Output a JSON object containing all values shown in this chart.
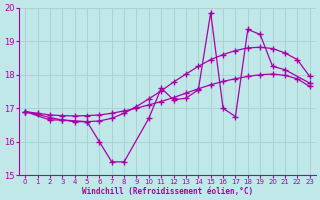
{
  "xlabel": "Windchill (Refroidissement éolien,°C)",
  "xlim": [
    -0.5,
    23.5
  ],
  "ylim": [
    15,
    20
  ],
  "yticks": [
    15,
    16,
    17,
    18,
    19,
    20
  ],
  "xticks": [
    0,
    1,
    2,
    3,
    4,
    5,
    6,
    7,
    8,
    9,
    10,
    11,
    12,
    13,
    14,
    15,
    16,
    17,
    18,
    19,
    20,
    21,
    22,
    23
  ],
  "bg_color": "#c0e8e8",
  "grid_color": "#a8d0d0",
  "line_color": "#aa00aa",
  "lines": [
    {
      "x": [
        0,
        1,
        2,
        3,
        4,
        5,
        6,
        7,
        8,
        9,
        10,
        11,
        12,
        13,
        14,
        15,
        16,
        17,
        18,
        19,
        20,
        21,
        22,
        23
      ],
      "y": [
        16.9,
        16.85,
        16.8,
        16.78,
        16.77,
        16.78,
        16.8,
        16.85,
        16.92,
        17.0,
        17.1,
        17.2,
        17.32,
        17.45,
        17.58,
        17.7,
        17.8,
        17.88,
        17.95,
        18.0,
        18.02,
        17.98,
        17.88,
        17.65
      ]
    },
    {
      "x": [
        0,
        1,
        2,
        3,
        4,
        5,
        6,
        7,
        8,
        9,
        10,
        11,
        12,
        13,
        14,
        15,
        16,
        17,
        18,
        19,
        20,
        21,
        22,
        23
      ],
      "y": [
        16.9,
        16.82,
        16.72,
        16.65,
        16.6,
        16.6,
        16.62,
        16.7,
        16.85,
        17.05,
        17.28,
        17.52,
        17.78,
        18.02,
        18.25,
        18.45,
        18.6,
        18.72,
        18.8,
        18.82,
        18.78,
        18.65,
        18.45,
        17.95
      ]
    },
    {
      "x": [
        0,
        2,
        3,
        5,
        6,
        7,
        8,
        10,
        11,
        12,
        13,
        14,
        15,
        16,
        17,
        18,
        19,
        20,
        21,
        23
      ],
      "y": [
        16.9,
        16.65,
        16.65,
        16.6,
        16.0,
        15.4,
        15.4,
        16.7,
        17.6,
        17.25,
        17.3,
        17.55,
        19.85,
        17.0,
        16.75,
        19.35,
        19.2,
        18.25,
        18.15,
        17.75
      ]
    }
  ]
}
